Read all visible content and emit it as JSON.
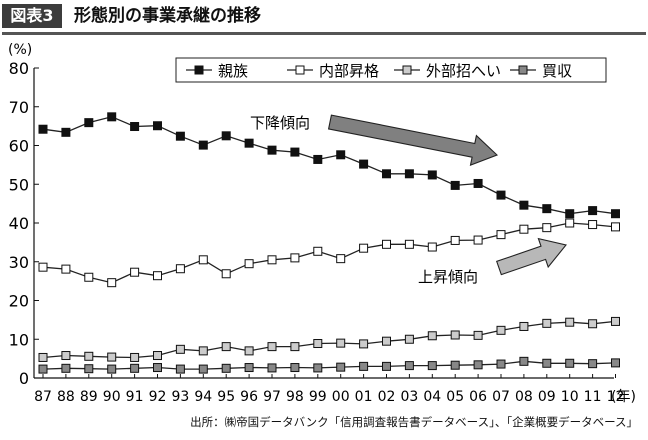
{
  "figure": {
    "label": "図表3",
    "title": "形態別の事業承継の推移",
    "source": "出所：㈱帝国データバンク「信用調査報告書データベース」、「企業概要データベース」"
  },
  "chart_data": {
    "type": "line",
    "y_unit": "(%)",
    "x_unit": "(年)",
    "ylim": [
      0,
      80
    ],
    "y_ticks": [
      0,
      10,
      20,
      30,
      40,
      50,
      60,
      70,
      80
    ],
    "x": [
      "87",
      "88",
      "89",
      "90",
      "91",
      "92",
      "93",
      "94",
      "95",
      "96",
      "97",
      "98",
      "99",
      "00",
      "01",
      "02",
      "03",
      "04",
      "05",
      "06",
      "07",
      "08",
      "09",
      "10",
      "11",
      "12"
    ],
    "legend_position": "top-right",
    "series": [
      {
        "name": "親族",
        "marker": "filled-square",
        "color": "#111111",
        "values": [
          64.2,
          63.4,
          65.9,
          67.4,
          64.9,
          65.1,
          62.4,
          60.1,
          62.5,
          60.6,
          58.8,
          58.3,
          56.4,
          57.6,
          55.2,
          52.7,
          52.7,
          52.4,
          49.7,
          50.2,
          47.2,
          44.6,
          43.7,
          42.4,
          43.2,
          42.4
        ]
      },
      {
        "name": "内部昇格",
        "marker": "open-square",
        "color": "#ffffff",
        "values": [
          28.6,
          28.1,
          26.0,
          24.6,
          27.3,
          26.4,
          28.2,
          30.5,
          26.9,
          29.5,
          30.5,
          31.0,
          32.7,
          30.8,
          33.5,
          34.5,
          34.5,
          33.8,
          35.5,
          35.6,
          37.0,
          38.4,
          38.8,
          40.0,
          39.6,
          39.0
        ]
      },
      {
        "name": "外部招へい",
        "marker": "light-gray-square",
        "color": "#cccccc",
        "values": [
          5.3,
          5.8,
          5.6,
          5.4,
          5.3,
          5.8,
          7.4,
          7.0,
          8.1,
          7.0,
          8.1,
          8.1,
          8.9,
          9.0,
          8.8,
          9.5,
          10.0,
          10.9,
          11.1,
          11.0,
          12.3,
          13.3,
          14.1,
          14.4,
          14.0,
          14.6
        ]
      },
      {
        "name": "買収",
        "marker": "dark-gray-square",
        "color": "#888888",
        "values": [
          2.3,
          2.5,
          2.4,
          2.3,
          2.5,
          2.7,
          2.3,
          2.3,
          2.5,
          2.7,
          2.6,
          2.7,
          2.6,
          2.8,
          3.0,
          3.0,
          3.2,
          3.2,
          3.3,
          3.4,
          3.6,
          4.3,
          3.8,
          3.8,
          3.7,
          3.9
        ]
      }
    ],
    "annotations": [
      {
        "text": "下降傾向",
        "arrow": "down-right",
        "color": "#808080"
      },
      {
        "text": "上昇傾向",
        "arrow": "up-right",
        "color": "#b8b8b8"
      }
    ]
  }
}
